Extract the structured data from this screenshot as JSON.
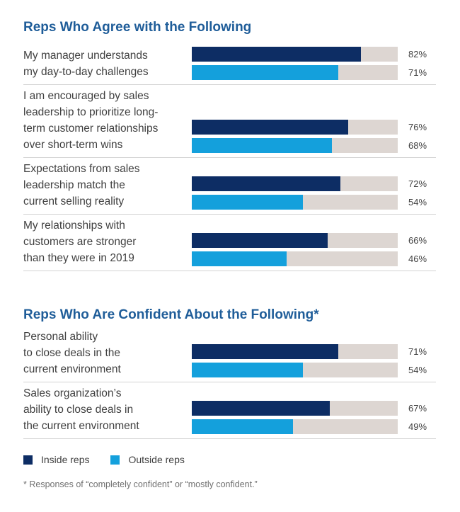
{
  "chart_data": [
    {
      "type": "bar",
      "orientation": "horizontal",
      "title": "Reps Who Agree with the Following",
      "categories": [
        "My manager understands\nmy day-to-day challenges",
        "I am encouraged by sales\nleadership to prioritize long-\nterm customer relationships\nover short-term wins",
        "Expectations from sales\nleadership match the\ncurrent selling reality",
        "My relationships with\ncustomers are stronger\nthan they were in 2019"
      ],
      "series": [
        {
          "name": "Inside reps",
          "values": [
            82,
            76,
            72,
            66
          ],
          "labels": [
            "82%",
            "76%",
            "72%",
            "66%"
          ]
        },
        {
          "name": "Outside reps",
          "values": [
            71,
            68,
            54,
            46
          ],
          "labels": [
            "71%",
            "68%",
            "54%",
            "46%"
          ]
        }
      ],
      "xlim": [
        0,
        100
      ],
      "grid": false,
      "legend": "bottom-left"
    },
    {
      "type": "bar",
      "orientation": "horizontal",
      "title": "Reps Who Are Confident About the Following*",
      "categories": [
        "Personal ability\nto close deals in the\ncurrent environment",
        "Sales organization’s\nability to close deals in\nthe current environment"
      ],
      "series": [
        {
          "name": "Inside reps",
          "values": [
            71,
            67
          ],
          "labels": [
            "71%",
            "67%"
          ]
        },
        {
          "name": "Outside reps",
          "values": [
            54,
            49
          ],
          "labels": [
            "54%",
            "49%"
          ]
        }
      ],
      "xlim": [
        0,
        100
      ],
      "grid": false,
      "legend": "bottom-left"
    }
  ],
  "legend": {
    "inside_label": "Inside reps",
    "outside_label": "Outside reps"
  },
  "colors": {
    "inside": "#0d2d64",
    "outside": "#14a0dc",
    "track": "#ddd6d2",
    "title": "#1f5d99"
  },
  "footnote": "* Responses of “completely confident” or “mostly confident.”"
}
